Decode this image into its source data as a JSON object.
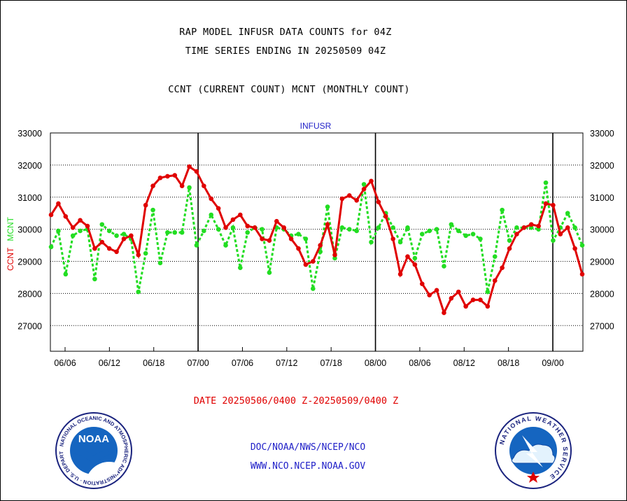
{
  "header": {
    "line1": "RAP MODEL INFUSR DATA COUNTS for 04Z",
    "line2": "TIME SERIES ENDING IN 20250509 04Z",
    "line3": "CCNT (CURRENT COUNT) MCNT (MONTHLY COUNT)"
  },
  "footer": {
    "date_range": "DATE 20250506/0400 Z-20250509/0400 Z",
    "link1": "DOC/NOAA/NWS/NCEP/NCO",
    "link2": "WWW.NCO.NCEP.NOAA.GOV"
  },
  "logos": {
    "left": {
      "name": "NOAA",
      "ring_text": "NATIONAL OCEANIC AND ATMOSPHERIC ADMINISTRATION · U.S. DEPARTMENT OF COMMERCE"
    },
    "right": {
      "name": "NWS",
      "ring_text": "NATIONAL WEATHER SERVICE"
    }
  },
  "colors": {
    "ccnt": "#e00000",
    "mcnt": "#22dd22",
    "grid": "#000000",
    "title_blue": "#2020c8"
  },
  "chart_data": {
    "type": "line",
    "title": "INFUSR",
    "ylabel_parts": [
      "CCNT",
      "MCNT"
    ],
    "ylim": [
      26200,
      33000
    ],
    "yticks": [
      27000,
      28000,
      29000,
      30000,
      31000,
      32000,
      33000
    ],
    "x_tick_labels": [
      "06/06",
      "06/12",
      "06/18",
      "07/00",
      "07/06",
      "07/12",
      "07/18",
      "08/00",
      "08/06",
      "08/12",
      "08/18",
      "09/00"
    ],
    "grid": "horizontal dotted at each y tick; solid vertical day separators",
    "series": [
      {
        "name": "CCNT",
        "values": [
          30450,
          30800,
          30400,
          30050,
          30280,
          30100,
          29400,
          29600,
          29400,
          29300,
          29700,
          29800,
          29200,
          30750,
          31350,
          31600,
          31650,
          31680,
          31350,
          31950,
          31800,
          31350,
          30950,
          30650,
          30050,
          30300,
          30450,
          30100,
          30050,
          29700,
          29650,
          30250,
          30050,
          29700,
          29400,
          28900,
          29000,
          29500,
          30150,
          29200,
          30950,
          31050,
          30900,
          31250,
          31500,
          30850,
          30400,
          29700,
          28600,
          29150,
          28900,
          28300,
          27950,
          28100,
          27400,
          27850,
          28050,
          27600,
          27800,
          27800,
          27600,
          28400,
          28800,
          29400,
          29850,
          30050,
          30150,
          30100,
          30800,
          30750,
          29850,
          30050,
          29400,
          28600
        ]
      },
      {
        "name": "MCNT",
        "values": [
          29450,
          29950,
          28600,
          29800,
          29950,
          30000,
          28450,
          30150,
          29950,
          29800,
          29850,
          29700,
          28050,
          29250,
          30600,
          28950,
          29900,
          29900,
          29900,
          31300,
          29500,
          29950,
          30450,
          30000,
          29500,
          30050,
          28800,
          29900,
          30050,
          30000,
          28650,
          30050,
          30000,
          29800,
          29850,
          29700,
          28150,
          29300,
          30700,
          29100,
          30050,
          30000,
          29950,
          31400,
          29600,
          30050,
          30500,
          30050,
          29600,
          30050,
          29100,
          29850,
          29950,
          30000,
          28850,
          30150,
          29950,
          29800,
          29850,
          29700,
          28050,
          29150,
          30600,
          29650,
          30050,
          30050,
          30050,
          30000,
          31450,
          29650,
          30050,
          30500,
          30050,
          29500
        ]
      }
    ]
  }
}
